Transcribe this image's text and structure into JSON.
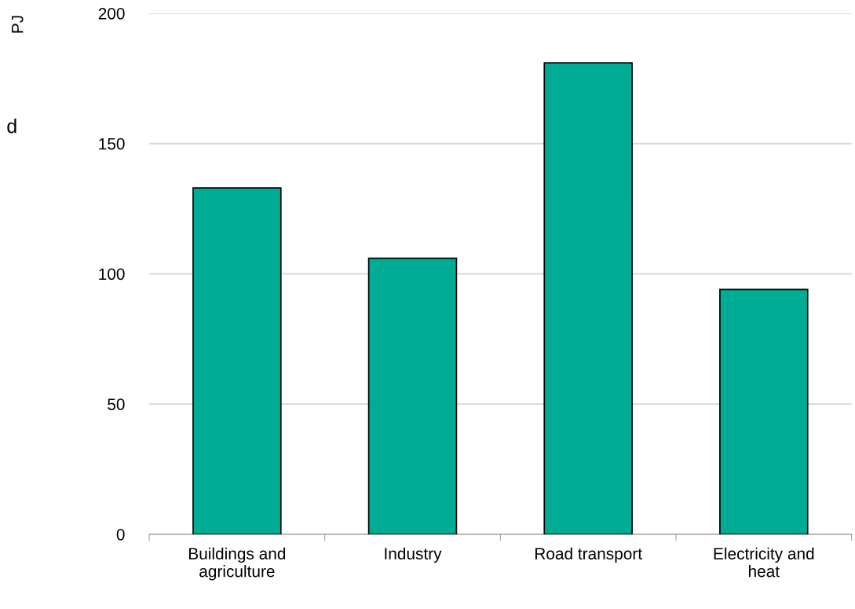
{
  "chart_data": {
    "type": "bar",
    "ylabel": "PJ",
    "categories": [
      "Buildings and\nagriculture",
      "Industry",
      "Road transport",
      "Electricity and\nheat"
    ],
    "values": [
      133,
      106,
      181,
      94
    ],
    "color": "#00ac93",
    "ylim": [
      0,
      200
    ],
    "yticks": [
      0,
      50,
      100,
      150,
      200
    ],
    "grid": "y",
    "annotations": [
      "d"
    ]
  }
}
